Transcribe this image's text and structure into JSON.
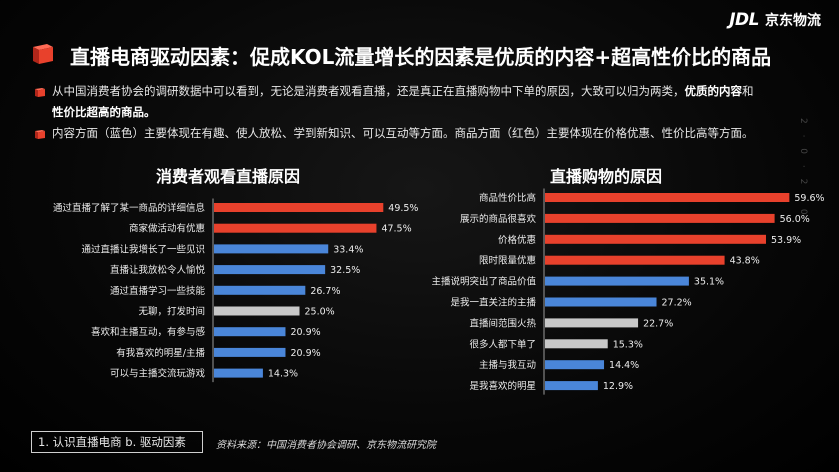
{
  "logo": {
    "mark": "JDL",
    "name": "京东物流"
  },
  "header": {
    "title": "直播电商驱动因素：促成KOL流量增长的因素是优质的内容+超高性价比的商品"
  },
  "bullets": [
    {
      "text_plain": "从中国消费者协会的调研数据中可以看到，无论是消费者观看直播，还是真正在直播购物中下单的原因，大致可以归为两类，",
      "text_bold": "优质的内容",
      "text_join": "和",
      "text_bold2": "性价比超高的商品。"
    },
    {
      "text": "内容方面（蓝色）主要体现在有趣、使人放松、学到新知识、可以互动等方面。商品方面（红色）主要体现在价格优惠、性价比高等方面。"
    }
  ],
  "side_deco": "2 · 0 · 2 · 0",
  "colors": {
    "red": "#e8412c",
    "blue": "#4a86d9",
    "gray": "#c8c8c8",
    "accent": "#e8412c"
  },
  "icons": {
    "title": "red-cube-icon",
    "bullet": "red-cube-icon"
  },
  "chart_data": [
    {
      "type": "bar",
      "orientation": "horizontal",
      "title": "消费者观看直播原因",
      "categories": [
        "通过直播了解了某一商品的详细信息",
        "商家做活动有优惠",
        "通过直播让我增长了一些见识",
        "直播让我放松令人愉悦",
        "通过直播学习一些技能",
        "无聊，打发时间",
        "喜欢和主播互动，有参与感",
        "有我喜欢的明星/主播",
        "可以与主播交流玩游戏"
      ],
      "values": [
        49.5,
        47.5,
        33.4,
        32.5,
        26.7,
        25.0,
        20.9,
        20.9,
        14.3
      ],
      "labels": [
        "49.5%",
        "47.5%",
        "33.4%",
        "32.5%",
        "26.7%",
        "25.0%",
        "20.9%",
        "20.9%",
        "14.3%"
      ],
      "colors": [
        "red",
        "red",
        "blue",
        "blue",
        "blue",
        "gray",
        "blue",
        "blue",
        "blue"
      ],
      "unit": "%",
      "xlim": [
        0,
        60
      ]
    },
    {
      "type": "bar",
      "orientation": "horizontal",
      "title": "直播购物的原因",
      "categories": [
        "商品性价比高",
        "展示的商品很喜欢",
        "价格优惠",
        "限时限量优惠",
        "主播说明突出了商品价值",
        "是我一直关注的主播",
        "直播间范围火热",
        "很多人都下单了",
        "主播与我互动",
        "是我喜欢的明星"
      ],
      "values": [
        59.6,
        56.0,
        53.9,
        43.8,
        35.1,
        27.2,
        22.7,
        15.3,
        14.4,
        12.9
      ],
      "labels": [
        "59.6%",
        "56.0%",
        "53.9%",
        "43.8%",
        "35.1%",
        "27.2%",
        "22.7%",
        "15.3%",
        "14.4%",
        "12.9%"
      ],
      "colors": [
        "red",
        "red",
        "red",
        "red",
        "blue",
        "blue",
        "gray",
        "gray",
        "blue",
        "blue"
      ],
      "unit": "%",
      "xlim": [
        0,
        60
      ]
    }
  ],
  "footer": {
    "section": "1. 认识直播电商  b. 驱动因素",
    "source": "资料来源：中国消费者协会调研、京东物流研究院"
  }
}
